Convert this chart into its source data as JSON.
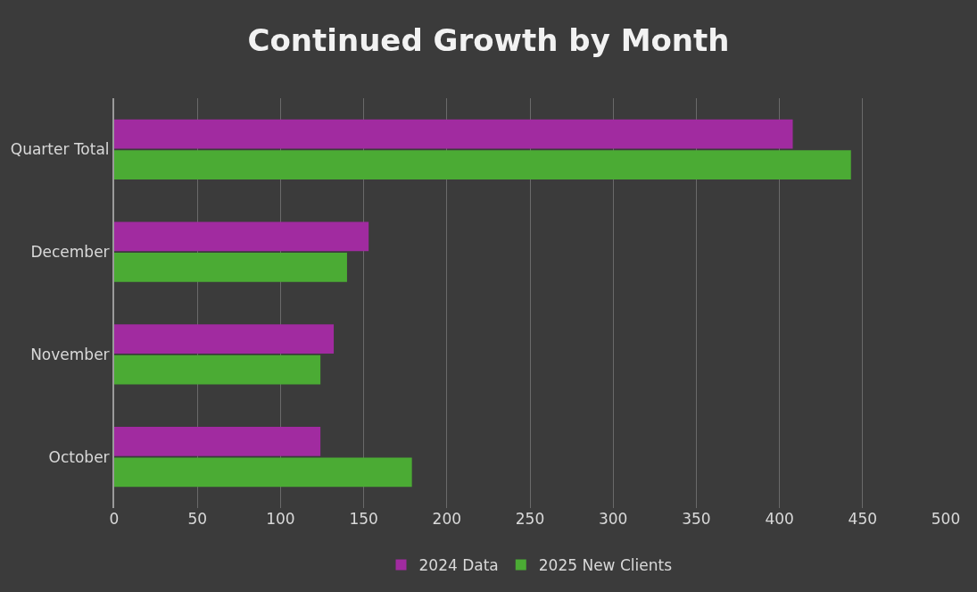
{
  "chart_data": {
    "type": "bar",
    "orientation": "horizontal",
    "title": "Continued Growth by Month",
    "categories": [
      "Quarter Total",
      "December",
      "November",
      "October"
    ],
    "series": [
      {
        "name": "2024 Data",
        "color": "#a12ba0",
        "values": [
          408,
          153,
          132,
          124
        ]
      },
      {
        "name": "2025 New Clients",
        "color": "#4bab34",
        "values": [
          443,
          140,
          124,
          179
        ]
      }
    ],
    "xlim": [
      0,
      500
    ],
    "xticks": [
      0,
      50,
      100,
      150,
      200,
      250,
      300,
      350,
      400,
      450,
      500
    ],
    "grid": "x",
    "legend": "bottom"
  }
}
